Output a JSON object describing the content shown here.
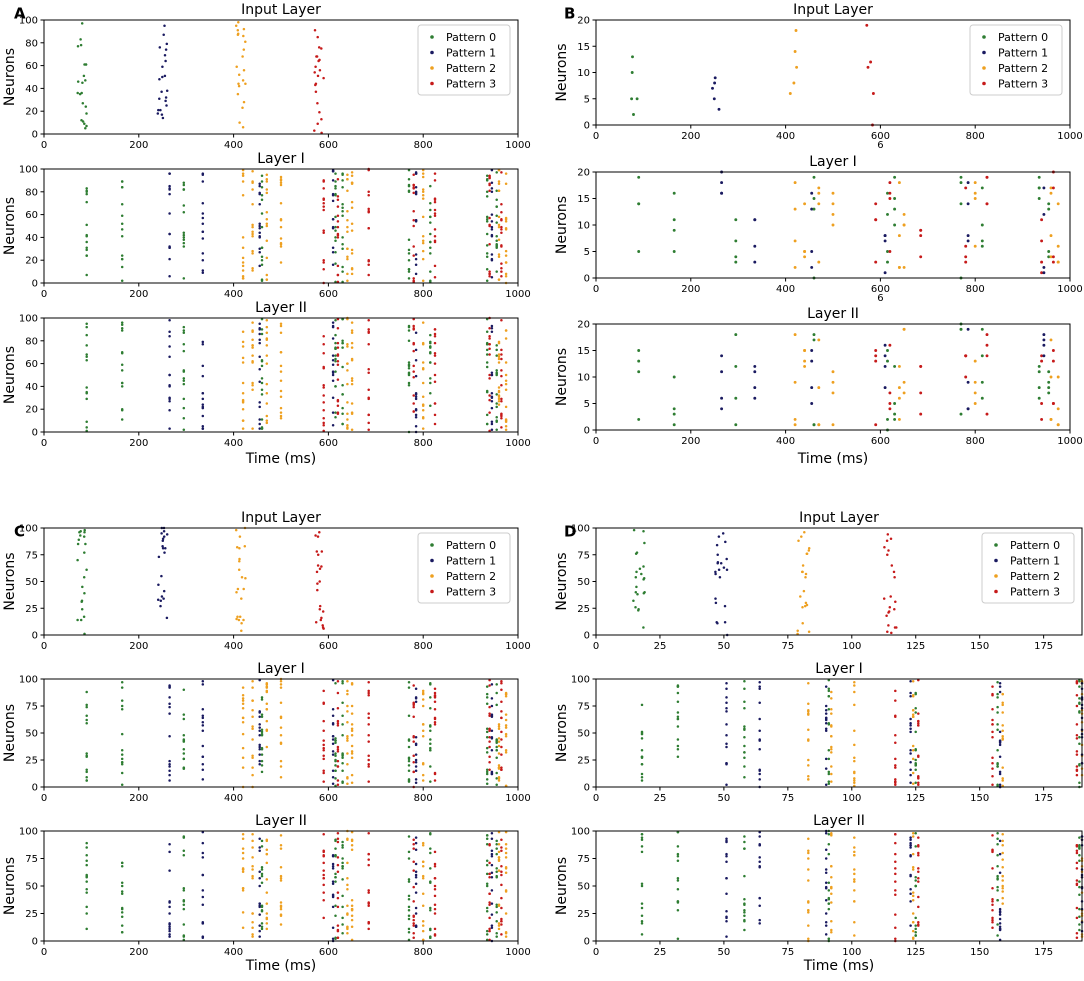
{
  "colors": {
    "p0": "#2e7d32",
    "p1": "#1a1a60",
    "p2": "#eea020",
    "p3": "#c61a1a"
  },
  "legend": [
    "Pattern 0",
    "Pattern 1",
    "Pattern 2",
    "Pattern 3"
  ],
  "chart_data": [
    {
      "panel": "A",
      "type": "scatter",
      "xlabel": "Time (ms)",
      "ylabel": "Neurons",
      "xlim": [
        0,
        1000
      ],
      "xticks": [
        0,
        200,
        400,
        600,
        800,
        1000
      ],
      "ylim": [
        0,
        100
      ],
      "yticks": [
        0,
        20,
        40,
        60,
        80,
        100
      ],
      "subplots": [
        {
          "title": "Input Layer",
          "legend": true,
          "input": true,
          "centers": [
            80,
            250,
            415,
            580
          ],
          "jitter": 10
        },
        {
          "title": "Layer I",
          "legend": false,
          "input": false,
          "columns": [
            [
              90,
              0
            ],
            [
              165,
              0
            ],
            [
              265,
              1
            ],
            [
              295,
              0
            ],
            [
              335,
              1
            ],
            [
              420,
              2
            ],
            [
              440,
              2
            ],
            [
              455,
              1
            ],
            [
              460,
              0
            ],
            [
              470,
              2
            ],
            [
              500,
              2
            ],
            [
              590,
              3
            ],
            [
              610,
              1
            ],
            [
              615,
              0
            ],
            [
              620,
              3
            ],
            [
              630,
              0
            ],
            [
              640,
              2
            ],
            [
              650,
              2
            ],
            [
              685,
              3
            ],
            [
              770,
              0
            ],
            [
              780,
              3
            ],
            [
              785,
              1
            ],
            [
              800,
              2
            ],
            [
              815,
              0
            ],
            [
              825,
              3
            ],
            [
              935,
              0
            ],
            [
              940,
              3
            ],
            [
              945,
              1
            ],
            [
              955,
              0
            ],
            [
              960,
              2
            ],
            [
              965,
              3
            ],
            [
              975,
              2
            ]
          ]
        },
        {
          "title": "Layer II",
          "legend": false,
          "input": false,
          "columns": [
            [
              90,
              0
            ],
            [
              165,
              0
            ],
            [
              265,
              1
            ],
            [
              295,
              0
            ],
            [
              335,
              1
            ],
            [
              420,
              2
            ],
            [
              440,
              2
            ],
            [
              455,
              1
            ],
            [
              460,
              0
            ],
            [
              470,
              2
            ],
            [
              500,
              2
            ],
            [
              590,
              3
            ],
            [
              610,
              1
            ],
            [
              615,
              0
            ],
            [
              620,
              3
            ],
            [
              630,
              0
            ],
            [
              640,
              2
            ],
            [
              650,
              2
            ],
            [
              685,
              3
            ],
            [
              770,
              0
            ],
            [
              780,
              3
            ],
            [
              785,
              1
            ],
            [
              800,
              2
            ],
            [
              815,
              0
            ],
            [
              825,
              3
            ],
            [
              935,
              0
            ],
            [
              940,
              3
            ],
            [
              945,
              1
            ],
            [
              955,
              0
            ],
            [
              960,
              2
            ],
            [
              965,
              3
            ],
            [
              975,
              2
            ]
          ]
        }
      ]
    },
    {
      "panel": "B",
      "type": "scatter",
      "xlabel": "Time (ms)",
      "ylabel": "Neurons",
      "xlim": [
        0,
        1000
      ],
      "xticks": [
        0,
        200,
        400,
        600,
        800,
        1000
      ],
      "ylim": [
        0,
        20
      ],
      "yticks": [
        0,
        5,
        10,
        15,
        20
      ],
      "annotation": "6",
      "subplots": [
        {
          "title": "Input Layer",
          "legend": true,
          "input": true,
          "centers": [
            80,
            250,
            415,
            580
          ],
          "jitter": 10
        },
        {
          "title": "Layer I",
          "legend": false,
          "input": false,
          "columns": [
            [
              90,
              0
            ],
            [
              165,
              0
            ],
            [
              265,
              1
            ],
            [
              295,
              0
            ],
            [
              335,
              1
            ],
            [
              420,
              2
            ],
            [
              440,
              2
            ],
            [
              455,
              1
            ],
            [
              460,
              0
            ],
            [
              470,
              2
            ],
            [
              500,
              2
            ],
            [
              590,
              3
            ],
            [
              610,
              1
            ],
            [
              615,
              0
            ],
            [
              620,
              3
            ],
            [
              630,
              0
            ],
            [
              640,
              2
            ],
            [
              650,
              2
            ],
            [
              685,
              3
            ],
            [
              770,
              0
            ],
            [
              780,
              3
            ],
            [
              785,
              1
            ],
            [
              800,
              2
            ],
            [
              815,
              0
            ],
            [
              825,
              3
            ],
            [
              935,
              0
            ],
            [
              940,
              3
            ],
            [
              945,
              1
            ],
            [
              955,
              0
            ],
            [
              960,
              2
            ],
            [
              965,
              3
            ],
            [
              975,
              2
            ]
          ]
        },
        {
          "title": "Layer II",
          "legend": false,
          "input": false,
          "columns": [
            [
              90,
              0
            ],
            [
              165,
              0
            ],
            [
              265,
              1
            ],
            [
              295,
              0
            ],
            [
              335,
              1
            ],
            [
              420,
              2
            ],
            [
              440,
              2
            ],
            [
              455,
              1
            ],
            [
              460,
              0
            ],
            [
              470,
              2
            ],
            [
              500,
              2
            ],
            [
              590,
              3
            ],
            [
              610,
              1
            ],
            [
              615,
              0
            ],
            [
              620,
              3
            ],
            [
              630,
              0
            ],
            [
              640,
              2
            ],
            [
              650,
              2
            ],
            [
              685,
              3
            ],
            [
              770,
              0
            ],
            [
              780,
              3
            ],
            [
              785,
              1
            ],
            [
              800,
              2
            ],
            [
              815,
              0
            ],
            [
              825,
              3
            ],
            [
              935,
              0
            ],
            [
              940,
              3
            ],
            [
              945,
              1
            ],
            [
              955,
              0
            ],
            [
              960,
              2
            ],
            [
              965,
              3
            ],
            [
              975,
              2
            ]
          ]
        }
      ]
    },
    {
      "panel": "C",
      "type": "scatter",
      "xlabel": "Time (ms)",
      "ylabel": "Neurons",
      "xlim": [
        0,
        1000
      ],
      "xticks": [
        0,
        200,
        400,
        600,
        800,
        1000
      ],
      "ylim": [
        0,
        100
      ],
      "yticks": [
        0,
        25,
        50,
        75,
        100
      ],
      "subplots": [
        {
          "title": "Input Layer",
          "legend": true,
          "input": true,
          "centers": [
            80,
            250,
            415,
            580
          ],
          "jitter": 10
        },
        {
          "title": "Layer I",
          "legend": false,
          "input": false,
          "columns": [
            [
              90,
              0
            ],
            [
              165,
              0
            ],
            [
              265,
              1
            ],
            [
              295,
              0
            ],
            [
              335,
              1
            ],
            [
              420,
              2
            ],
            [
              440,
              2
            ],
            [
              455,
              1
            ],
            [
              460,
              0
            ],
            [
              470,
              2
            ],
            [
              500,
              2
            ],
            [
              590,
              3
            ],
            [
              610,
              1
            ],
            [
              615,
              0
            ],
            [
              620,
              3
            ],
            [
              630,
              0
            ],
            [
              640,
              2
            ],
            [
              650,
              2
            ],
            [
              685,
              3
            ],
            [
              770,
              0
            ],
            [
              780,
              3
            ],
            [
              785,
              1
            ],
            [
              800,
              2
            ],
            [
              815,
              0
            ],
            [
              825,
              3
            ],
            [
              935,
              0
            ],
            [
              940,
              3
            ],
            [
              945,
              1
            ],
            [
              955,
              0
            ],
            [
              960,
              2
            ],
            [
              965,
              3
            ],
            [
              975,
              2
            ]
          ]
        },
        {
          "title": "Layer II",
          "legend": false,
          "input": false,
          "columns": [
            [
              90,
              0
            ],
            [
              165,
              0
            ],
            [
              265,
              1
            ],
            [
              295,
              0
            ],
            [
              335,
              1
            ],
            [
              420,
              2
            ],
            [
              440,
              2
            ],
            [
              455,
              1
            ],
            [
              460,
              0
            ],
            [
              470,
              2
            ],
            [
              500,
              2
            ],
            [
              590,
              3
            ],
            [
              610,
              1
            ],
            [
              615,
              0
            ],
            [
              620,
              3
            ],
            [
              630,
              0
            ],
            [
              640,
              2
            ],
            [
              650,
              2
            ],
            [
              685,
              3
            ],
            [
              770,
              0
            ],
            [
              780,
              3
            ],
            [
              785,
              1
            ],
            [
              800,
              2
            ],
            [
              815,
              0
            ],
            [
              825,
              3
            ],
            [
              935,
              0
            ],
            [
              940,
              3
            ],
            [
              945,
              1
            ],
            [
              955,
              0
            ],
            [
              960,
              2
            ],
            [
              965,
              3
            ],
            [
              975,
              2
            ]
          ]
        }
      ]
    },
    {
      "panel": "D",
      "type": "scatter",
      "xlabel": "Time (ms)",
      "ylabel": "Neurons",
      "xlim": [
        0,
        190
      ],
      "xticks": [
        0,
        25,
        50,
        75,
        100,
        125,
        150,
        175
      ],
      "ylim": [
        0,
        100
      ],
      "yticks": [
        0,
        25,
        50,
        75,
        100
      ],
      "subplots": [
        {
          "title": "Input Layer",
          "legend": true,
          "input": true,
          "centers": [
            17,
            49,
            81,
            115
          ],
          "jitter": 2.5
        },
        {
          "title": "Layer I",
          "legend": false,
          "input": false,
          "columns": [
            [
              18,
              0
            ],
            [
              32,
              0
            ],
            [
              51,
              1
            ],
            [
              58,
              0
            ],
            [
              64,
              1
            ],
            [
              83,
              2
            ],
            [
              90,
              1
            ],
            [
              91,
              0
            ],
            [
              92,
              2
            ],
            [
              101,
              2
            ],
            [
              117,
              3
            ],
            [
              123,
              1
            ],
            [
              124,
              2
            ],
            [
              125,
              0
            ],
            [
              126,
              3
            ],
            [
              155,
              3
            ],
            [
              157,
              0
            ],
            [
              158,
              1
            ],
            [
              159,
              2
            ],
            [
              188,
              3
            ],
            [
              189,
              0
            ],
            [
              190,
              2
            ],
            [
              190,
              1
            ]
          ]
        },
        {
          "title": "Layer II",
          "legend": false,
          "input": false,
          "columns": [
            [
              18,
              0
            ],
            [
              32,
              0
            ],
            [
              51,
              1
            ],
            [
              58,
              0
            ],
            [
              64,
              1
            ],
            [
              83,
              2
            ],
            [
              90,
              1
            ],
            [
              91,
              0
            ],
            [
              92,
              2
            ],
            [
              101,
              2
            ],
            [
              117,
              3
            ],
            [
              123,
              1
            ],
            [
              124,
              2
            ],
            [
              125,
              0
            ],
            [
              126,
              3
            ],
            [
              155,
              3
            ],
            [
              157,
              0
            ],
            [
              158,
              1
            ],
            [
              159,
              2
            ],
            [
              188,
              3
            ],
            [
              189,
              0
            ],
            [
              190,
              2
            ],
            [
              190,
              1
            ]
          ]
        }
      ]
    }
  ]
}
